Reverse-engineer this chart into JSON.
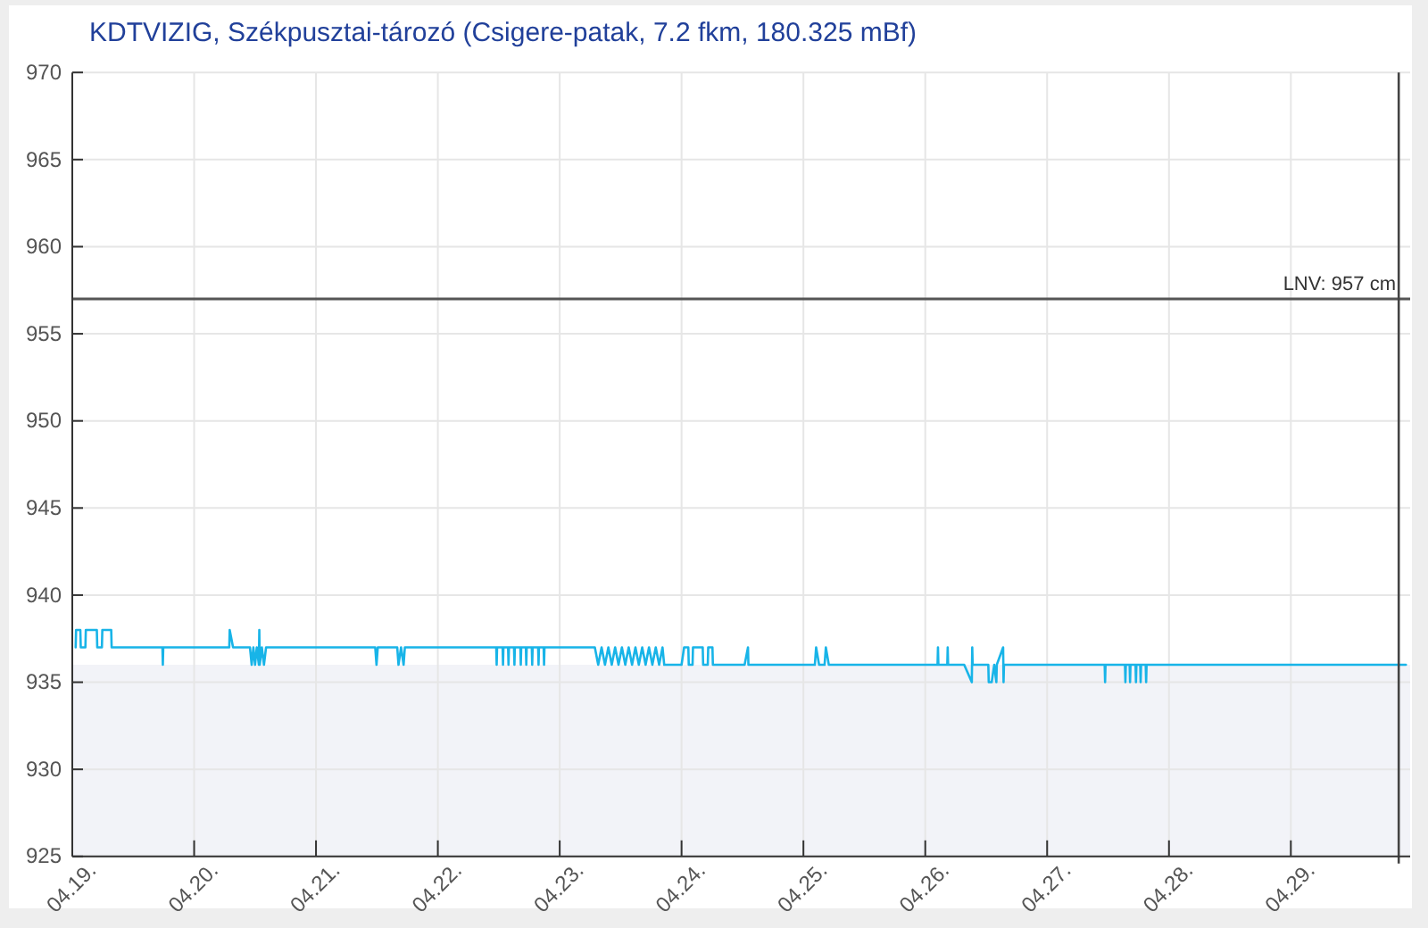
{
  "chart_data": {
    "type": "line",
    "title": "KDTVIZIG, Székpusztai-tározó (Csigere-patak, 7.2 fkm, 180.325 mBf)",
    "x": [
      "--04-19T00:40",
      "--04-19T00:45",
      "--04-19T01:35",
      "--04-19T01:40",
      "--04-19T02:35",
      "--04-19T02:40",
      "--04-19T04:50",
      "--04-19T04:55",
      "--04-19T05:50",
      "--04-19T05:55",
      "--04-19T07:40",
      "--04-19T07:45",
      "--04-19T17:45",
      "--04-19T17:50",
      "--04-19T17:55",
      "--04-20T06:55",
      "--04-20T07:00",
      "--04-20T07:40",
      "--04-20T11:00",
      "--04-20T11:20",
      "--04-20T11:40",
      "--04-20T12:00",
      "--04-20T12:20",
      "--04-20T12:45",
      "--04-20T12:50",
      "--04-20T12:55",
      "--04-20T13:20",
      "--04-20T13:45",
      "--04-20T14:10",
      "--04-21T11:40",
      "--04-21T11:55",
      "--04-21T12:10",
      "--04-21T16:00",
      "--04-21T16:15",
      "--04-21T16:45",
      "--04-21T17:15",
      "--04-21T17:30",
      "--04-22T11:30",
      "--04-22T11:35",
      "--04-22T11:40",
      "--04-22T12:45",
      "--04-22T12:50",
      "--04-22T12:55",
      "--04-22T13:50",
      "--04-22T13:55",
      "--04-22T14:00",
      "--04-22T15:00",
      "--04-22T15:05",
      "--04-22T15:10",
      "--04-22T16:15",
      "--04-22T16:20",
      "--04-22T16:25",
      "--04-22T17:20",
      "--04-22T17:25",
      "--04-22T17:30",
      "--04-22T18:30",
      "--04-22T18:35",
      "--04-22T18:40",
      "--04-22T19:45",
      "--04-22T19:50",
      "--04-22T19:55",
      "--04-22T20:50",
      "--04-22T20:55",
      "--04-22T21:00",
      "--04-23T06:55",
      "--04-23T07:35",
      "--04-23T08:15",
      "--04-23T08:55",
      "--04-23T09:35",
      "--04-23T10:15",
      "--04-23T10:55",
      "--04-23T11:35",
      "--04-23T12:15",
      "--04-23T12:55",
      "--04-23T13:35",
      "--04-23T14:15",
      "--04-23T14:55",
      "--04-23T15:35",
      "--04-23T16:15",
      "--04-23T16:55",
      "--04-23T17:35",
      "--04-23T18:15",
      "--04-23T18:55",
      "--04-23T19:35",
      "--04-23T20:15",
      "--04-23T20:35",
      "--04-24T00:00",
      "--04-24T00:30",
      "--04-24T01:20",
      "--04-24T01:25",
      "--04-24T02:10",
      "--04-24T02:15",
      "--04-24T04:10",
      "--04-24T04:15",
      "--04-24T05:10",
      "--04-24T05:15",
      "--04-24T06:05",
      "--04-24T06:10",
      "--04-24T12:25",
      "--04-24T13:05",
      "--04-24T13:10",
      "--04-25T02:15",
      "--04-25T02:30",
      "--04-25T03:05",
      "--04-25T04:10",
      "--04-25T04:25",
      "--04-25T05:00",
      "--04-26T02:25",
      "--04-26T02:30",
      "--04-26T02:35",
      "--04-26T04:20",
      "--04-26T04:25",
      "--04-26T04:30",
      "--04-26T07:40",
      "--04-26T09:10",
      "--04-26T09:15",
      "--04-26T09:20",
      "--04-26T12:25",
      "--04-26T12:30",
      "--04-26T13:05",
      "--04-26T13:35",
      "--04-26T14:00",
      "--04-26T14:05",
      "--04-26T15:20",
      "--04-26T15:25",
      "--04-26T15:30",
      "--04-27T11:20",
      "--04-27T11:25",
      "--04-27T11:30",
      "--04-27T15:20",
      "--04-27T15:25",
      "--04-27T15:30",
      "--04-27T16:15",
      "--04-27T16:20",
      "--04-27T16:25",
      "--04-27T17:25",
      "--04-27T17:30",
      "--04-27T17:35",
      "--04-27T18:20",
      "--04-27T18:25",
      "--04-27T18:30",
      "--04-27T19:25",
      "--04-27T19:30",
      "--04-27T19:35",
      "--04-29T22:40"
    ],
    "series": [
      {
        "color": "#18b4e8",
        "values": [
          937,
          938,
          938,
          937,
          937,
          938,
          938,
          937,
          937,
          938,
          938,
          937,
          937,
          936,
          937,
          937,
          938,
          937,
          937,
          936,
          937,
          936,
          937,
          936,
          938,
          936,
          937,
          936,
          937,
          937,
          936,
          937,
          937,
          936,
          937,
          936,
          937,
          937,
          936,
          937,
          937,
          936,
          937,
          937,
          936,
          937,
          937,
          936,
          937,
          937,
          936,
          937,
          937,
          936,
          937,
          937,
          936,
          937,
          937,
          936,
          937,
          937,
          936,
          937,
          937,
          936,
          937,
          936,
          937,
          936,
          937,
          936,
          937,
          936,
          937,
          936,
          937,
          936,
          937,
          936,
          937,
          936,
          937,
          936,
          937,
          936,
          936,
          937,
          937,
          936,
          936,
          937,
          937,
          936,
          936,
          937,
          937,
          936,
          936,
          937,
          936,
          936,
          937,
          936,
          936,
          937,
          936,
          936,
          937,
          936,
          936,
          937,
          936,
          936,
          935,
          937,
          936,
          936,
          935,
          935,
          936,
          935,
          936,
          937,
          935,
          936,
          936,
          935,
          936,
          936,
          935,
          936,
          936,
          935,
          936,
          936,
          935,
          936,
          936,
          935,
          936,
          936,
          935,
          936,
          936
        ]
      }
    ],
    "xlim": [
      "--04-19T00:00",
      "--04-29T23:30"
    ],
    "xticks": [
      {
        "value": "--04-19",
        "label": "04.19."
      },
      {
        "value": "--04-20",
        "label": "04.20."
      },
      {
        "value": "--04-21",
        "label": "04.21."
      },
      {
        "value": "--04-22",
        "label": "04.22."
      },
      {
        "value": "--04-23",
        "label": "04.23."
      },
      {
        "value": "--04-24",
        "label": "04.24."
      },
      {
        "value": "--04-25",
        "label": "04.25."
      },
      {
        "value": "--04-26",
        "label": "04.26."
      },
      {
        "value": "--04-27",
        "label": "04.27."
      },
      {
        "value": "--04-28",
        "label": "04.28."
      },
      {
        "value": "--04-29",
        "label": "04.29."
      }
    ],
    "ylim": [
      925,
      970
    ],
    "yticks": [
      925,
      930,
      935,
      940,
      945,
      950,
      955,
      960,
      965,
      970
    ],
    "grid": true,
    "ref_lines": [
      {
        "axis": "y",
        "value": 957,
        "label": "LNV: 957 cm",
        "color": "#555555"
      },
      {
        "axis": "x",
        "value": "--04-29T21:15",
        "color": "#444444"
      }
    ],
    "bands": [
      {
        "axis": "y",
        "from": 925,
        "to": 936,
        "color": "#f2f3f8"
      }
    ]
  }
}
